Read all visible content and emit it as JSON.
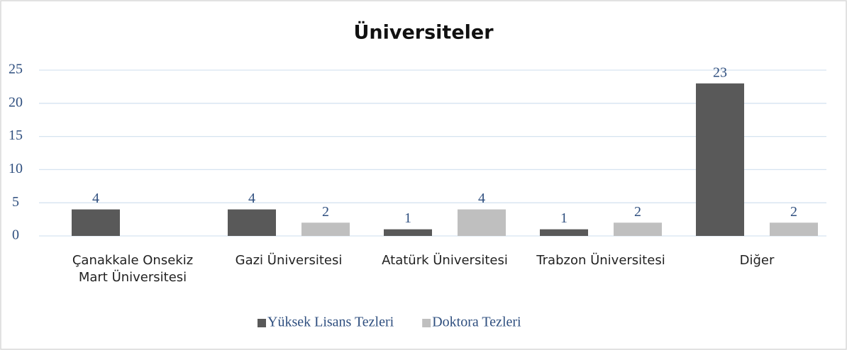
{
  "chart_data": {
    "type": "bar",
    "title": "Üniversiteler",
    "categories": [
      "Çanakkale Onsekiz Mart Üniversitesi",
      "Gazi Üniversitesi",
      "Atatürk Üniversitesi",
      "Trabzon Üniversitesi",
      "Diğer"
    ],
    "series": [
      {
        "name": "Yüksek Lisans Tezleri",
        "color": "#595959",
        "values": [
          4,
          4,
          1,
          1,
          23
        ]
      },
      {
        "name": "Doktora Tezleri",
        "color": "#bfbfbf",
        "values": [
          null,
          2,
          4,
          2,
          2
        ]
      }
    ],
    "ylim": [
      0,
      25
    ],
    "yticks": [
      0,
      5,
      10,
      15,
      20,
      25
    ],
    "grid": true,
    "legend": "bottom"
  }
}
